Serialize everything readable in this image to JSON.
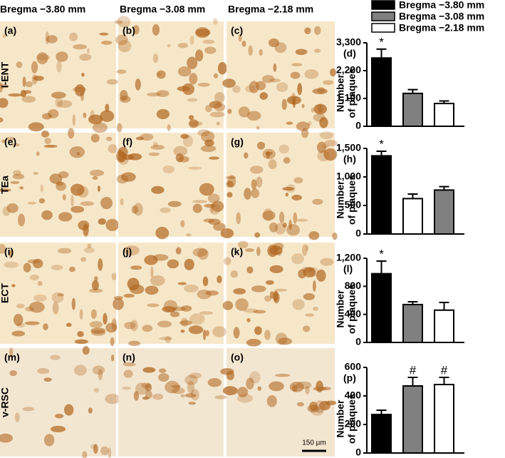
{
  "figure": {
    "columns": [
      "Bregma −3.80 mm",
      "Bregma −3.08 mm",
      "Bregma −2.18 mm"
    ],
    "rows": [
      "I-ENT",
      "TEa",
      "ECT",
      "v-RSC"
    ],
    "panels": [
      "(a)",
      "(b)",
      "(c)",
      "(e)",
      "(f)",
      "(g)",
      "(i)",
      "(j)",
      "(k)",
      "(m)",
      "(n)",
      "(o)"
    ],
    "scale_bar": "150 µm"
  },
  "legend": [
    {
      "name": "Bregma −3.80 mm",
      "color": "#000000"
    },
    {
      "name": "Bregma −3.08 mm",
      "color": "#808080"
    },
    {
      "name": "Bregma −2.18 mm",
      "color": "#ffffff"
    }
  ],
  "chart_data": [
    {
      "type": "bar",
      "panel": "(d)",
      "ylabel": [
        "Number",
        "of plaques"
      ],
      "values": [
        2700,
        1300,
        900
      ],
      "errors": [
        350,
        150,
        100
      ],
      "colors": [
        "#000000",
        "#808080",
        "#ffffff"
      ],
      "annotations": [
        "*",
        null,
        null
      ],
      "ylim": [
        0,
        3300
      ],
      "yticks": [
        0,
        {
          "value": 1100,
          "label": "1,100"
        },
        {
          "value": 2200,
          "label": "2,200"
        },
        {
          "value": 3300,
          "label": "3,300"
        }
      ]
    },
    {
      "type": "bar",
      "panel": "(h)",
      "ylabel": [
        "Number",
        "of plaques"
      ],
      "values": [
        1370,
        620,
        770
      ],
      "errors": [
        80,
        80,
        60
      ],
      "colors": [
        "#000000",
        "#ffffff",
        "#808080"
      ],
      "annotations": [
        "*",
        null,
        null
      ],
      "ylim": [
        0,
        1500
      ],
      "yticks": [
        0,
        500,
        {
          "value": 1000,
          "label": "1,000"
        },
        {
          "value": 1500,
          "label": "1,500"
        }
      ]
    },
    {
      "type": "bar",
      "panel": "(l)",
      "ylabel": [
        "Number",
        "of plaques"
      ],
      "values": [
        980,
        540,
        460
      ],
      "errors": [
        180,
        40,
        110
      ],
      "colors": [
        "#000000",
        "#808080",
        "#ffffff"
      ],
      "annotations": [
        "*",
        null,
        null
      ],
      "ylim": [
        0,
        1200
      ],
      "yticks": [
        0,
        400,
        800,
        {
          "value": 1200,
          "label": "1,200"
        }
      ]
    },
    {
      "type": "bar",
      "panel": "(p)",
      "ylabel": [
        "Number",
        "of plaques"
      ],
      "values": [
        270,
        470,
        480
      ],
      "errors": [
        30,
        60,
        50
      ],
      "colors": [
        "#000000",
        "#808080",
        "#ffffff"
      ],
      "annotations": [
        null,
        "#",
        "#"
      ],
      "ylim": [
        0,
        600
      ],
      "yticks": [
        0,
        200,
        400,
        600
      ]
    }
  ]
}
